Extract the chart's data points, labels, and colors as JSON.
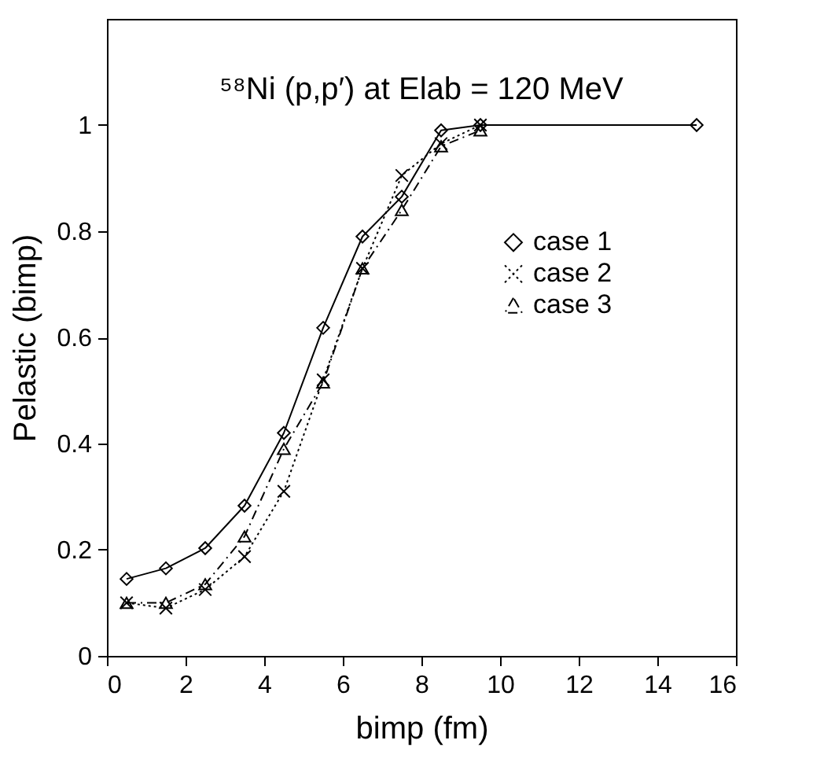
{
  "chart_data": {
    "type": "line",
    "title": "⁵⁸Ni (p,p′)  at Elab = 120 MeV",
    "xlabel": "bimp (fm)",
    "ylabel": "Pelastic (bimp)",
    "xlim": [
      0,
      16
    ],
    "xticks": [
      0,
      2,
      4,
      6,
      8,
      10,
      12,
      14,
      16
    ],
    "ylim": [
      0,
      1.2
    ],
    "yticks": [
      0,
      0.2,
      0.4,
      0.6,
      0.8,
      1
    ],
    "grid": false,
    "legend": "right",
    "series": [
      {
        "name": "case 1",
        "color": "#000000",
        "marker": "diamond",
        "line_style": "solid",
        "x": [
          0.5,
          1.5,
          2.5,
          3.5,
          4.5,
          5.5,
          6.5,
          7.5,
          8.5,
          9.5,
          15
        ],
        "values": [
          0.145,
          0.165,
          0.203,
          0.283,
          0.42,
          0.618,
          0.79,
          0.865,
          0.99,
          1.0,
          1.0
        ]
      },
      {
        "name": "case 2",
        "color": "#000000",
        "marker": "cross",
        "line_style": "dotted",
        "x": [
          0.5,
          1.5,
          2.5,
          3.5,
          4.5,
          5.5,
          6.5,
          7.5,
          8.5,
          9.5
        ],
        "values": [
          0.1,
          0.09,
          0.125,
          0.187,
          0.31,
          0.52,
          0.73,
          0.905,
          0.965,
          1.0
        ]
      },
      {
        "name": "case 3",
        "color": "#000000",
        "marker": "triangle",
        "line_style": "dashed",
        "x": [
          0.5,
          1.5,
          2.5,
          3.5,
          4.5,
          5.5,
          6.5,
          7.5,
          8.5,
          9.5
        ],
        "values": [
          0.1,
          0.1,
          0.135,
          0.225,
          0.39,
          0.515,
          0.73,
          0.84,
          0.96,
          0.99
        ]
      }
    ]
  }
}
